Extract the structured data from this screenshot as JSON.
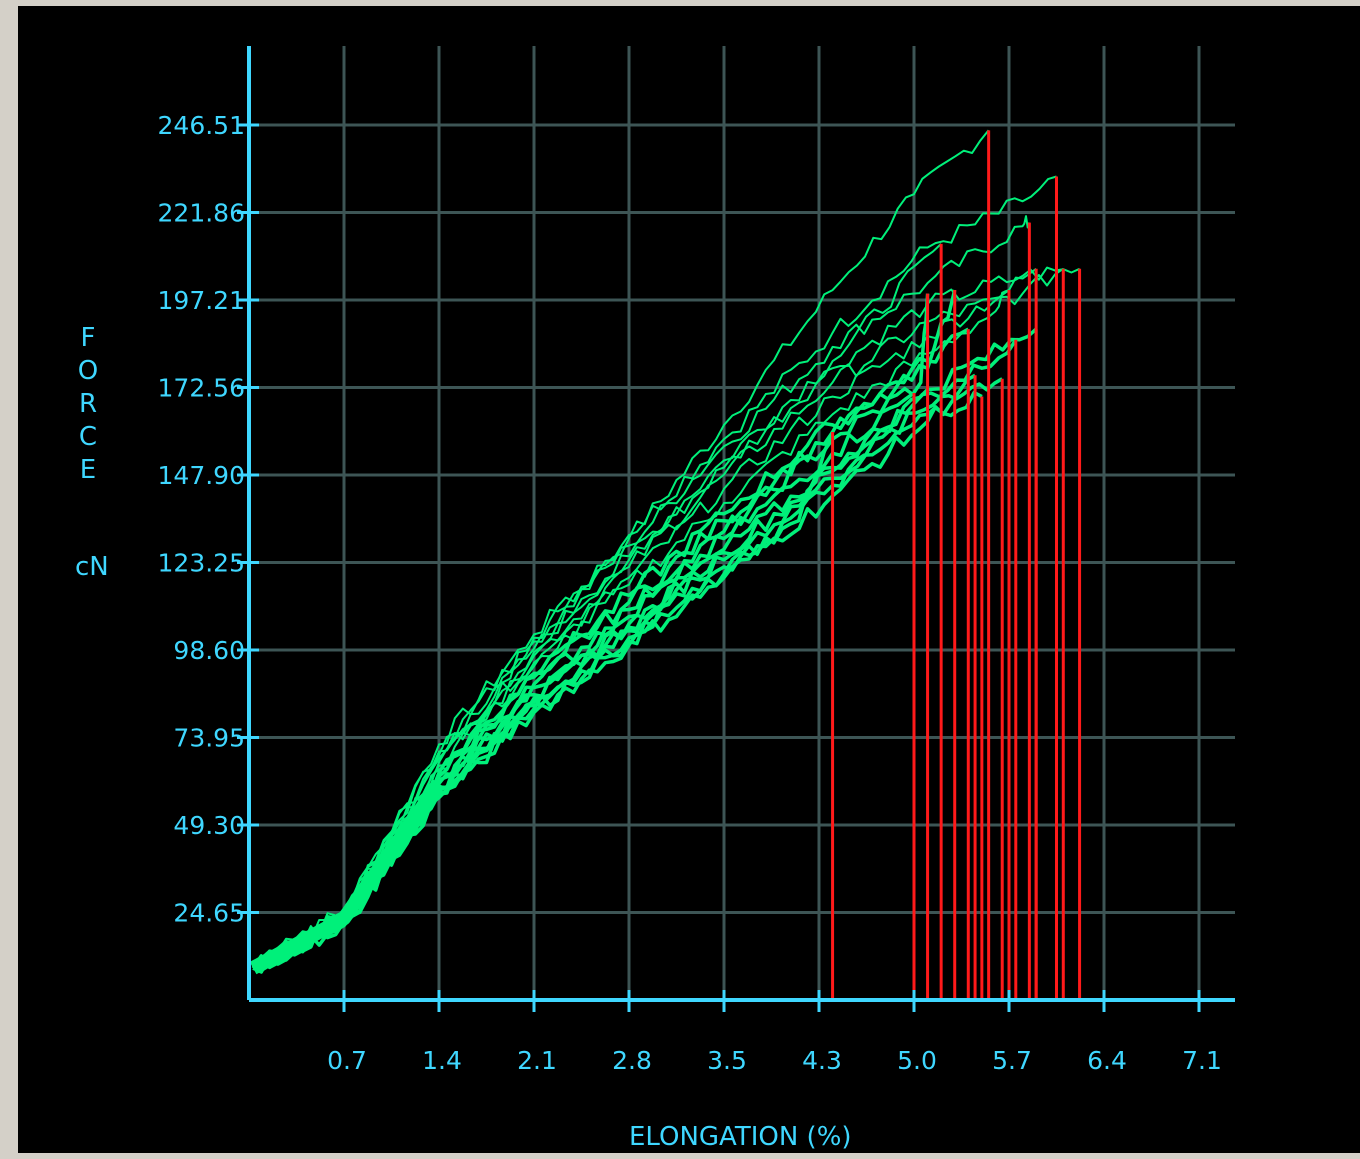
{
  "chart_data": {
    "type": "line",
    "title": "",
    "xlabel": "ELONGATION (%)",
    "ylabel": "FORCE",
    "ylabel_unit": "cN",
    "x_ticks": [
      "0.7",
      "1.4",
      "2.1",
      "2.8",
      "3.5",
      "4.3",
      "5.0",
      "5.7",
      "6.4",
      "7.1"
    ],
    "y_ticks": [
      "246.51",
      "221.86",
      "197.21",
      "172.56",
      "147.90",
      "123.25",
      "98.60",
      "73.95",
      "49.30",
      "24.65"
    ],
    "xlim": [
      0,
      7.24
    ],
    "ylim": [
      0,
      271.16
    ],
    "grid": true,
    "colors": {
      "background": "#000000",
      "frame": "#d4d0c8",
      "curves": "#00f07a",
      "break_lines": "#ff1a1a",
      "grid": "#3d5555",
      "axis": "#3fd7ff",
      "text": "#3fd7ff"
    },
    "series": [
      {
        "values": [
          [
            0.03,
            9
          ],
          [
            0.7,
            25
          ],
          [
            1.4,
            72
          ],
          [
            2.1,
            103
          ],
          [
            2.8,
            130
          ],
          [
            3.5,
            162
          ],
          [
            4.3,
            200
          ],
          [
            4.9,
            227
          ],
          [
            5.45,
            245
          ]
        ],
        "break": [
          5.45,
          245
        ]
      },
      {
        "values": [
          [
            0.03,
            9
          ],
          [
            0.7,
            24
          ],
          [
            1.4,
            70
          ],
          [
            2.1,
            102
          ],
          [
            2.8,
            131
          ],
          [
            3.5,
            158
          ],
          [
            4.3,
            188
          ],
          [
            5.0,
            212
          ],
          [
            5.7,
            225
          ],
          [
            5.95,
            232
          ]
        ],
        "break": [
          5.95,
          232
        ]
      },
      {
        "values": [
          [
            0.03,
            9
          ],
          [
            0.7,
            25
          ],
          [
            1.4,
            69
          ],
          [
            2.1,
            101
          ],
          [
            2.8,
            128
          ],
          [
            3.5,
            156
          ],
          [
            4.3,
            184
          ],
          [
            5.0,
            202
          ],
          [
            5.7,
            218
          ],
          [
            5.75,
            219
          ]
        ],
        "break": [
          5.75,
          219
        ]
      },
      {
        "values": [
          [
            0.03,
            9
          ],
          [
            0.7,
            24
          ],
          [
            1.4,
            68
          ],
          [
            2.1,
            99
          ],
          [
            2.8,
            125
          ],
          [
            3.5,
            152
          ],
          [
            4.3,
            180
          ],
          [
            5.1,
            213
          ]
        ],
        "break": [
          5.1,
          213
        ]
      },
      {
        "values": [
          [
            0.03,
            9
          ],
          [
            0.7,
            24
          ],
          [
            1.4,
            68
          ],
          [
            2.1,
            98
          ],
          [
            2.8,
            124
          ],
          [
            3.5,
            150
          ],
          [
            4.3,
            178
          ],
          [
            5.0,
            196
          ],
          [
            5.7,
            204
          ],
          [
            6.12,
            206
          ]
        ],
        "break": [
          6.12,
          206
        ]
      },
      {
        "values": [
          [
            0.03,
            9
          ],
          [
            0.7,
            24
          ],
          [
            1.4,
            67
          ],
          [
            2.1,
            97
          ],
          [
            2.8,
            122
          ],
          [
            3.5,
            148
          ],
          [
            4.3,
            174
          ],
          [
            5.0,
            191
          ],
          [
            5.7,
            199
          ],
          [
            6.0,
            206
          ]
        ],
        "break": [
          6.0,
          206
        ]
      },
      {
        "values": [
          [
            0.03,
            9
          ],
          [
            0.7,
            24
          ],
          [
            1.4,
            66
          ],
          [
            2.1,
            95
          ],
          [
            2.8,
            119
          ],
          [
            3.5,
            144
          ],
          [
            4.3,
            170
          ],
          [
            5.0,
            187
          ],
          [
            5.6,
            200
          ],
          [
            5.8,
            206
          ]
        ],
        "break": [
          5.8,
          206
        ]
      },
      {
        "values": [
          [
            0.03,
            9
          ],
          [
            0.7,
            23
          ],
          [
            1.4,
            65
          ],
          [
            2.1,
            94
          ],
          [
            2.8,
            117
          ],
          [
            3.5,
            140
          ],
          [
            4.3,
            165
          ],
          [
            5.0,
            182
          ],
          [
            5.5,
            194
          ],
          [
            5.6,
            200
          ]
        ],
        "break": [
          5.6,
          200
        ]
      },
      {
        "values": [
          [
            0.03,
            9
          ],
          [
            0.7,
            23
          ],
          [
            1.4,
            64
          ],
          [
            2.1,
            92
          ],
          [
            2.8,
            114
          ],
          [
            3.5,
            137
          ],
          [
            4.3,
            162
          ],
          [
            5.0,
            180
          ],
          [
            5.3,
            189
          ]
        ],
        "break": [
          5.3,
          189
        ]
      },
      {
        "values": [
          [
            0.03,
            9
          ],
          [
            0.7,
            23
          ],
          [
            1.4,
            63
          ],
          [
            2.1,
            91
          ],
          [
            2.8,
            112
          ],
          [
            3.5,
            135
          ],
          [
            4.3,
            160
          ],
          [
            5.0,
            178
          ],
          [
            5.2,
            200
          ]
        ],
        "break": [
          5.2,
          200
        ]
      },
      {
        "values": [
          [
            0.03,
            9
          ],
          [
            0.7,
            23
          ],
          [
            1.4,
            62
          ],
          [
            2.1,
            89
          ],
          [
            2.8,
            110
          ],
          [
            3.5,
            132
          ],
          [
            4.3,
            158
          ],
          [
            4.95,
            174
          ],
          [
            5.0,
            199
          ]
        ],
        "break": [
          5.0,
          199
        ]
      },
      {
        "values": [
          [
            0.03,
            9
          ],
          [
            0.7,
            22
          ],
          [
            1.4,
            61
          ],
          [
            2.1,
            88
          ],
          [
            2.8,
            108
          ],
          [
            3.5,
            130
          ],
          [
            4.3,
            154
          ],
          [
            4.9,
            171
          ]
        ],
        "break": [
          4.9,
          171
        ]
      },
      {
        "values": [
          [
            0.03,
            9
          ],
          [
            0.7,
            22
          ],
          [
            1.4,
            60
          ],
          [
            2.1,
            86
          ],
          [
            2.8,
            106
          ],
          [
            3.5,
            127
          ],
          [
            4.3,
            150
          ],
          [
            4.9,
            168
          ],
          [
            5.4,
            178
          ],
          [
            5.65,
            186
          ]
        ],
        "break": [
          5.65,
          186
        ]
      },
      {
        "values": [
          [
            0.03,
            9
          ],
          [
            0.7,
            22
          ],
          [
            1.4,
            60
          ],
          [
            2.1,
            85
          ],
          [
            2.8,
            105
          ],
          [
            3.5,
            126
          ],
          [
            4.3,
            149
          ],
          [
            5.0,
            172
          ],
          [
            5.8,
            189
          ]
        ],
        "break": [
          5.8,
          189
        ]
      },
      {
        "values": [
          [
            0.03,
            9
          ],
          [
            0.7,
            22
          ],
          [
            1.4,
            59
          ],
          [
            2.1,
            84
          ],
          [
            2.8,
            104
          ],
          [
            3.5,
            124
          ],
          [
            4.3,
            147
          ],
          [
            5.1,
            170
          ],
          [
            5.55,
            175
          ]
        ],
        "break": [
          5.55,
          175
        ]
      },
      {
        "values": [
          [
            0.03,
            9
          ],
          [
            0.7,
            22
          ],
          [
            1.4,
            58
          ],
          [
            2.1,
            83
          ],
          [
            2.8,
            102
          ],
          [
            3.5,
            122
          ],
          [
            4.05,
            135
          ],
          [
            4.3,
            160
          ]
        ],
        "break": [
          4.3,
          160
        ]
      },
      {
        "values": [
          [
            0.03,
            9
          ],
          [
            0.7,
            21
          ],
          [
            1.4,
            58
          ],
          [
            2.1,
            82
          ],
          [
            2.8,
            101
          ],
          [
            3.5,
            120
          ],
          [
            4.3,
            145
          ],
          [
            5.0,
            165
          ],
          [
            5.4,
            170
          ]
        ],
        "break": [
          5.4,
          170
        ]
      },
      {
        "values": [
          [
            0.03,
            9
          ],
          [
            0.7,
            21
          ],
          [
            1.4,
            57
          ],
          [
            2.1,
            81
          ],
          [
            2.8,
            100
          ],
          [
            3.5,
            119
          ],
          [
            4.3,
            142
          ],
          [
            5.0,
            163
          ],
          [
            5.35,
            176
          ]
        ],
        "break": [
          5.35,
          176
        ]
      }
    ]
  }
}
